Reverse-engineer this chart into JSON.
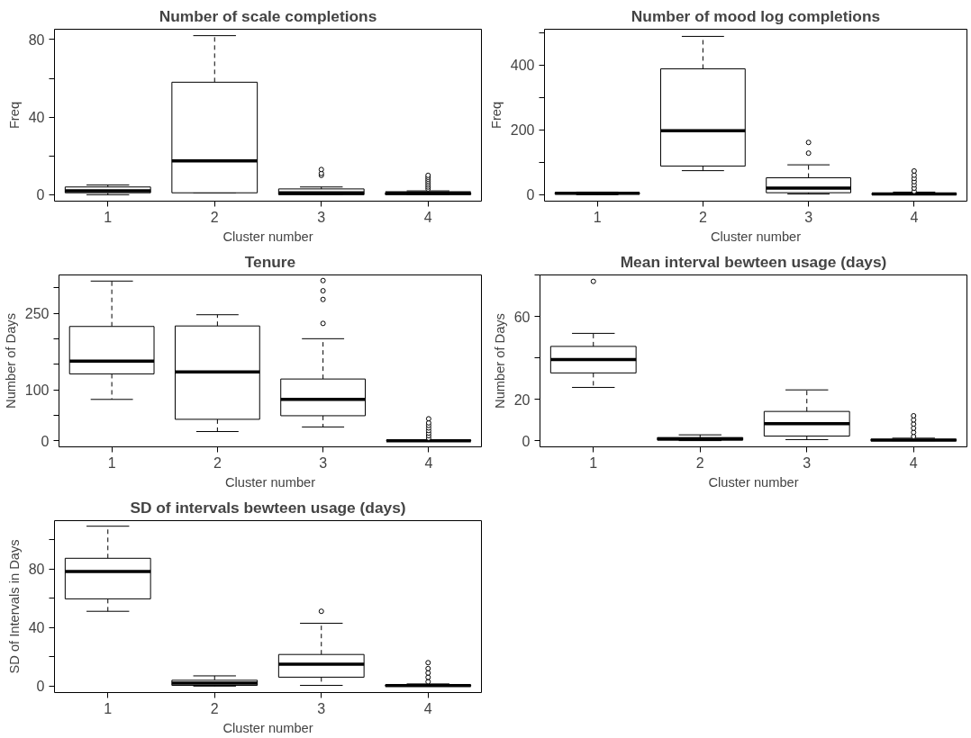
{
  "chart_data": [
    {
      "type": "box",
      "title": "Number of scale completions",
      "xlabel": "Cluster number",
      "ylabel": "Freq",
      "categories": [
        "1",
        "2",
        "3",
        "4"
      ],
      "ylim": [
        -3.3,
        85.3
      ],
      "yticks": [
        0,
        {
          "value": 20,
          "label": null
        },
        40,
        {
          "value": 60,
          "label": null
        },
        80
      ],
      "boxes": [
        {
          "low": 0,
          "q1": 1,
          "median": 2,
          "q3": 4,
          "high": 5
        },
        {
          "low": 1,
          "q1": 1,
          "median": 17.5,
          "q3": 58,
          "high": 82
        },
        {
          "low": 0,
          "q1": 0,
          "median": 1,
          "q3": 3,
          "high": 4,
          "outliers": [
            10,
            11,
            13
          ]
        },
        {
          "low": 0,
          "q1": 0,
          "median": 1,
          "q3": 1,
          "high": 2,
          "outliers": [
            3,
            4,
            5,
            6,
            7,
            8,
            9,
            10
          ]
        }
      ]
    },
    {
      "type": "box",
      "title": "Number of mood log completions",
      "xlabel": "Cluster number",
      "ylabel": "Freq",
      "categories": [
        "1",
        "2",
        "3",
        "4"
      ],
      "ylim": [
        -20,
        510
      ],
      "yticks": [
        0,
        {
          "value": 100,
          "label": null
        },
        200,
        {
          "value": 300,
          "label": null
        },
        400,
        {
          "value": 500,
          "label": null
        }
      ],
      "boxes": [
        {
          "low": 0,
          "q1": 2,
          "median": 4,
          "q3": 6,
          "high": 8
        },
        {
          "low": 74,
          "q1": 88,
          "median": 197,
          "q3": 388,
          "high": 488
        },
        {
          "low": 2,
          "q1": 6,
          "median": 20,
          "q3": 52,
          "high": 92,
          "outliers": [
            128,
            161
          ]
        },
        {
          "low": 0,
          "q1": 0,
          "median": 2,
          "q3": 4,
          "high": 8,
          "outliers": [
            10,
            20,
            30,
            40,
            50,
            60,
            73
          ]
        }
      ]
    },
    {
      "type": "box",
      "title": "Tenure",
      "xlabel": "Cluster number",
      "ylabel": "Number of Days",
      "categories": [
        "1",
        "2",
        "3",
        "4"
      ],
      "ylim": [
        -12,
        325
      ],
      "yticks": [
        0,
        {
          "value": 50,
          "label": null
        },
        100,
        {
          "value": 150,
          "label": null
        },
        {
          "value": 200,
          "label": null
        },
        250,
        {
          "value": 300,
          "label": null
        }
      ],
      "boxes": [
        {
          "low": 81,
          "q1": 131,
          "median": 156,
          "q3": 224,
          "high": 313
        },
        {
          "low": 18,
          "q1": 42,
          "median": 135,
          "q3": 225,
          "high": 247
        },
        {
          "low": 27,
          "q1": 49,
          "median": 81,
          "q3": 121,
          "high": 200,
          "outliers": [
            230,
            277,
            294,
            314
          ]
        },
        {
          "low": 0,
          "q1": 0,
          "median": 0,
          "q3": 1,
          "high": 2,
          "outliers": [
            5,
            10,
            15,
            20,
            25,
            30,
            35,
            43
          ]
        }
      ]
    },
    {
      "type": "box",
      "title": "Mean interval bewteen usage (days)",
      "xlabel": "Cluster number",
      "ylabel": "Number of Days",
      "categories": [
        "1",
        "2",
        "3",
        "4"
      ],
      "ylim": [
        -3,
        80
      ],
      "yticks": [
        0,
        20,
        {
          "value": 40,
          "label": null
        },
        60,
        {
          "value": 80,
          "label": null
        }
      ],
      "boxes": [
        {
          "low": 25.7,
          "q1": 32.7,
          "median": 39.2,
          "q3": 45.5,
          "high": 51.8,
          "outliers": [
            76.9
          ]
        },
        {
          "low": 0,
          "q1": 0.3,
          "median": 0.8,
          "q3": 1.5,
          "high": 2.8
        },
        {
          "low": 0.5,
          "q1": 2.2,
          "median": 8.2,
          "q3": 14.1,
          "high": 24.5
        },
        {
          "low": 0,
          "q1": 0,
          "median": 0.3,
          "q3": 0.6,
          "high": 1.2,
          "outliers": [
            2,
            4,
            6,
            8,
            10,
            12
          ]
        }
      ]
    },
    {
      "type": "box",
      "title": "SD of intervals bewteen usage (days)",
      "xlabel": "Cluster number",
      "ylabel": "SD of Intervals in Days",
      "categories": [
        "1",
        "2",
        "3",
        "4"
      ],
      "ylim": [
        -4.4,
        113
      ],
      "yticks": [
        0,
        {
          "value": 20,
          "label": null
        },
        40,
        {
          "value": 60,
          "label": null
        },
        80,
        {
          "value": 100,
          "label": null
        }
      ],
      "boxes": [
        {
          "low": 51.1,
          "q1": 59.6,
          "median": 78.2,
          "q3": 87.3,
          "high": 109.2
        },
        {
          "low": 0,
          "q1": 0.5,
          "median": 2,
          "q3": 4,
          "high": 7
        },
        {
          "low": 0.5,
          "q1": 6.1,
          "median": 14.9,
          "q3": 21.6,
          "high": 42.9,
          "outliers": [
            51.1
          ]
        },
        {
          "low": 0,
          "q1": 0,
          "median": 0.3,
          "q3": 0.8,
          "high": 1.5,
          "outliers": [
            3,
            6,
            9,
            12,
            16
          ]
        }
      ]
    }
  ]
}
